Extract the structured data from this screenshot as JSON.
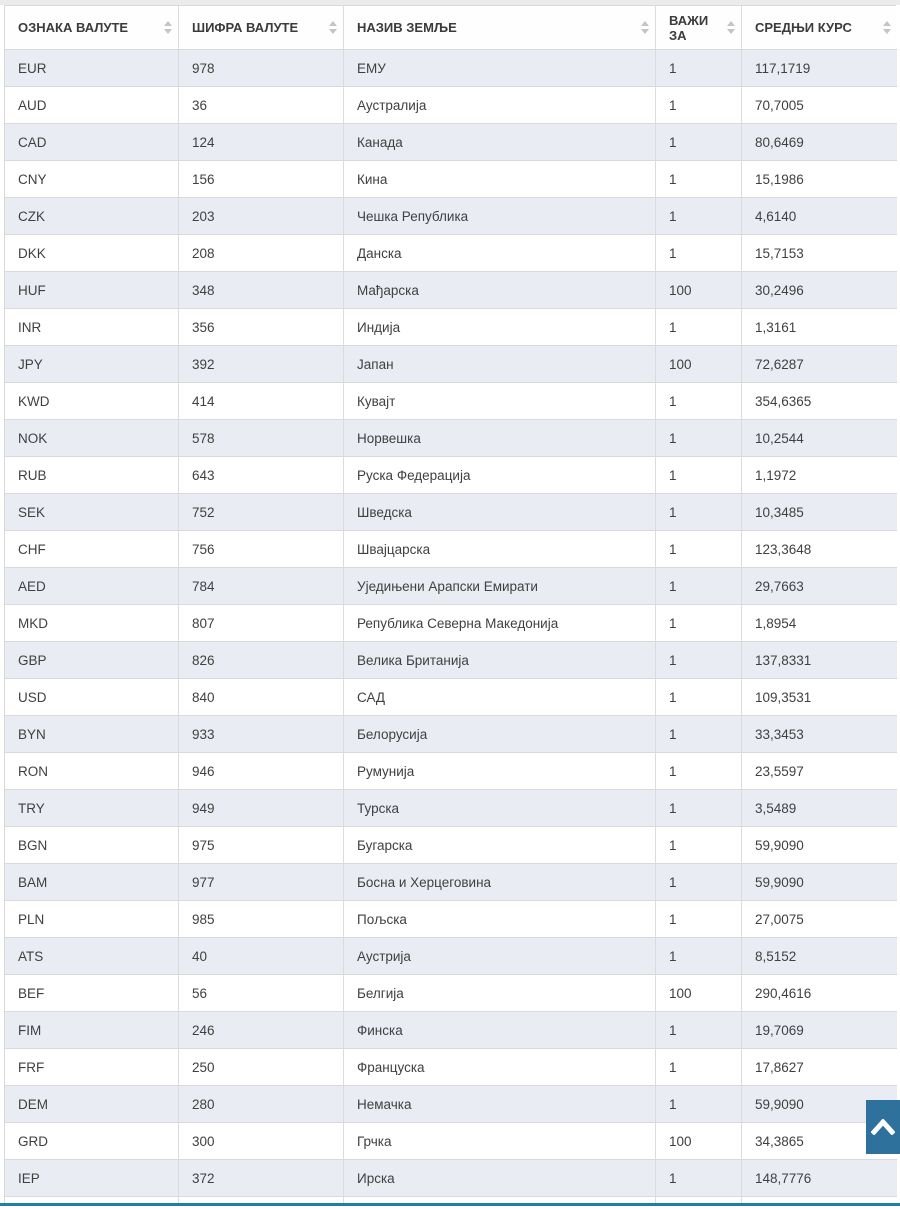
{
  "page": {
    "kind": "exchange-rate-list"
  },
  "colors": {
    "stripe": "#e9edf3",
    "button_blue": "#2d719c",
    "bottom_rule_blue": "#1e7ea4",
    "row_border": "#d9d9d9"
  },
  "table": {
    "columns": [
      {
        "key": "code",
        "label": "ОЗНАКА ВАЛУТЕ"
      },
      {
        "key": "num",
        "label": "ШИФРА ВАЛУТЕ"
      },
      {
        "key": "country",
        "label": "НАЗИВ ЗЕМЉЕ"
      },
      {
        "key": "unit",
        "label": "ВАЖИ ЗА"
      },
      {
        "key": "rate",
        "label": "СРЕДЊИ КУРС"
      }
    ],
    "rows": [
      [
        "EUR",
        "978",
        "ЕМУ",
        "1",
        "117,1719"
      ],
      [
        "AUD",
        "36",
        "Аустралија",
        "1",
        "70,7005"
      ],
      [
        "CAD",
        "124",
        "Канада",
        "1",
        "80,6469"
      ],
      [
        "CNY",
        "156",
        "Кина",
        "1",
        "15,1986"
      ],
      [
        "CZK",
        "203",
        "Чешка Република",
        "1",
        "4,6140"
      ],
      [
        "DKK",
        "208",
        "Данска",
        "1",
        "15,7153"
      ],
      [
        "HUF",
        "348",
        "Мађарска",
        "100",
        "30,2496"
      ],
      [
        "INR",
        "356",
        "Индија",
        "1",
        "1,3161"
      ],
      [
        "JPY",
        "392",
        "Јапан",
        "100",
        "72,6287"
      ],
      [
        "KWD",
        "414",
        "Кувајт",
        "1",
        "354,6365"
      ],
      [
        "NOK",
        "578",
        "Норвешка",
        "1",
        "10,2544"
      ],
      [
        "RUB",
        "643",
        "Руска Федерација",
        "1",
        "1,1972"
      ],
      [
        "SEK",
        "752",
        "Шведска",
        "1",
        "10,3485"
      ],
      [
        "CHF",
        "756",
        "Швајцарска",
        "1",
        "123,3648"
      ],
      [
        "AED",
        "784",
        "Уједињени Арапски Емирати",
        "1",
        "29,7663"
      ],
      [
        "MKD",
        "807",
        "Република Северна Македонија",
        "1",
        "1,8954"
      ],
      [
        "GBP",
        "826",
        "Велика Британија",
        "1",
        "137,8331"
      ],
      [
        "USD",
        "840",
        "САД",
        "1",
        "109,3531"
      ],
      [
        "BYN",
        "933",
        "Белорусија",
        "1",
        "33,3453"
      ],
      [
        "RON",
        "946",
        "Румунија",
        "1",
        "23,5597"
      ],
      [
        "TRY",
        "949",
        "Турска",
        "1",
        "3,5489"
      ],
      [
        "BGN",
        "975",
        "Бугарска",
        "1",
        "59,9090"
      ],
      [
        "BAM",
        "977",
        "Босна и Херцеговина",
        "1",
        "59,9090"
      ],
      [
        "PLN",
        "985",
        "Пољска",
        "1",
        "27,0075"
      ],
      [
        "ATS",
        "40",
        "Аустрија",
        "1",
        "8,5152"
      ],
      [
        "BEF",
        "56",
        "Белгија",
        "100",
        "290,4616"
      ],
      [
        "FIM",
        "246",
        "Финска",
        "1",
        "19,7069"
      ],
      [
        "FRF",
        "250",
        "Француска",
        "1",
        "17,8627"
      ],
      [
        "DEM",
        "280",
        "Немачка",
        "1",
        "59,9090"
      ],
      [
        "GRD",
        "300",
        "Грчка",
        "100",
        "34,3865"
      ],
      [
        "IEP",
        "372",
        "Ирска",
        "1",
        "148,7776"
      ]
    ]
  },
  "scroll_top_button": {
    "icon": "chevron-up"
  }
}
